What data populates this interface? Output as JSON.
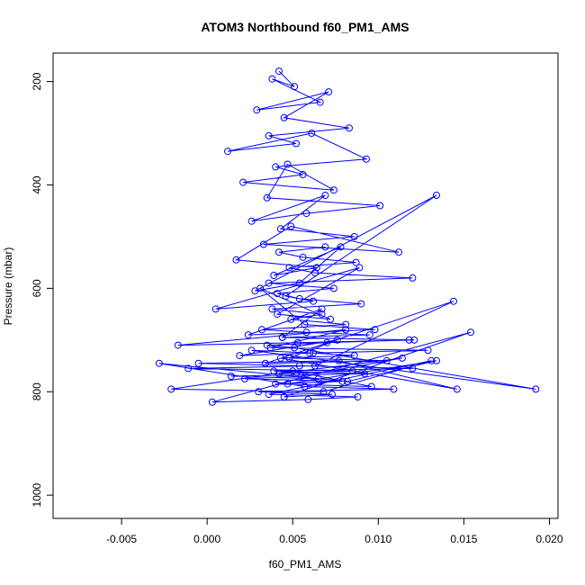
{
  "chart_data": {
    "type": "line",
    "title": "ATOM3 Northbound f60_PM1_AMS",
    "xlabel": "f60_PM1_AMS",
    "ylabel": "Pressure (mbar)",
    "xlim": [
      -0.009,
      0.0205
    ],
    "ylim": [
      1045,
      145
    ],
    "y_reversed": true,
    "x_ticks": [
      -0.005,
      0.0,
      0.005,
      0.01,
      0.015,
      0.02
    ],
    "x_tick_labels": [
      "-0.005",
      "0.000",
      "0.005",
      "0.010",
      "0.015",
      "0.020"
    ],
    "y_ticks": [
      200,
      400,
      600,
      800,
      1000
    ],
    "y_tick_labels": [
      "200",
      "400",
      "600",
      "800",
      "1000"
    ],
    "grid": false,
    "legend": "none",
    "markers": "open-circle",
    "series": [
      {
        "color": "#0000ff",
        "x": [
          0.0042,
          0.0051,
          0.0038,
          0.0066,
          0.0029,
          0.0071,
          0.0045,
          0.0083,
          0.0036,
          0.0052,
          0.0012,
          0.0061,
          0.0093,
          0.004,
          0.0056,
          0.0021,
          0.0074,
          0.0047,
          0.0035,
          0.0101,
          0.0058,
          0.0026,
          0.0069,
          0.0043,
          0.0086,
          0.0033,
          0.0112,
          0.0049,
          0.0017,
          0.0064,
          0.0039,
          0.0078,
          0.0054,
          0.0028,
          0.0134,
          0.0046,
          0.0062,
          0.0005,
          0.0089,
          0.0041,
          0.0072,
          0.0031,
          0.0057,
          0.0098,
          0.0024,
          0.0067,
          0.0044,
          0.0121,
          0.0053,
          -0.0017,
          0.0081,
          0.0037,
          0.0129,
          0.006,
          0.0019,
          0.0076,
          0.0048,
          0.0105,
          0.0034,
          0.0144,
          0.0063,
          -0.0011,
          0.0085,
          0.0042,
          0.0114,
          0.0055,
          0.0022,
          0.0079,
          0.004,
          0.0096,
          0.005,
          -0.0021,
          0.0068,
          0.0131,
          0.0036,
          0.0088,
          0.0059,
          0.0003,
          0.0154,
          0.0045,
          0.0073,
          0.003,
          0.0109,
          0.0057,
          -0.0028,
          0.0082,
          0.0134,
          0.0047,
          0.0065,
          0.0014,
          0.0092,
          0.0039,
          0.012,
          0.0054,
          -0.0005,
          0.0077,
          0.0146,
          0.0043,
          0.0086,
          0.0062,
          0.0026,
          0.0192,
          0.0051,
          0.0035,
          0.007,
          0.0118,
          0.0044,
          0.0095,
          0.0058,
          0.0032,
          0.0081,
          0.0049,
          0.0067,
          0.0038,
          0.009,
          0.0054,
          0.0041,
          0.0074,
          0.0036,
          0.012,
          0.0063,
          0.0048,
          0.0087,
          0.0056,
          0.0042,
          0.0069
        ],
        "y": [
          180,
          210,
          195,
          240,
          255,
          220,
          270,
          290,
          305,
          320,
          335,
          300,
          350,
          365,
          380,
          395,
          410,
          360,
          425,
          440,
          455,
          470,
          420,
          485,
          500,
          515,
          530,
          480,
          545,
          560,
          575,
          520,
          590,
          605,
          420,
          615,
          625,
          640,
          560,
          650,
          660,
          600,
          670,
          680,
          690,
          640,
          695,
          700,
          705,
          710,
          680,
          715,
          720,
          725,
          730,
          700,
          735,
          740,
          745,
          625,
          750,
          755,
          760,
          765,
          735,
          770,
          775,
          780,
          785,
          790,
          760,
          795,
          800,
          740,
          805,
          810,
          815,
          820,
          685,
          810,
          805,
          800,
          795,
          790,
          745,
          780,
          740,
          785,
          775,
          770,
          765,
          760,
          755,
          750,
          745,
          740,
          795,
          735,
          730,
          725,
          720,
          795,
          715,
          710,
          705,
          700,
          695,
          690,
          685,
          680,
          670,
          660,
          650,
          640,
          630,
          620,
          610,
          600,
          590,
          580,
          570,
          560,
          550,
          540,
          530,
          520
        ]
      }
    ]
  }
}
